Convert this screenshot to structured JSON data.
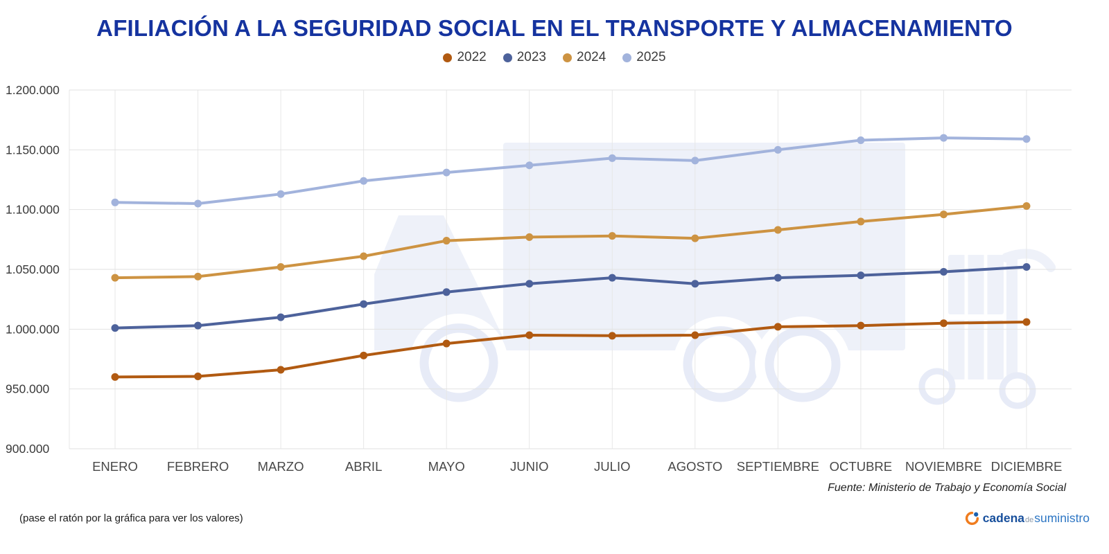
{
  "title": "AFILIACIÓN A LA SEGURIDAD SOCIAL EN EL TRANSPORTE Y ALMACENAMIENTO",
  "chart_data": {
    "type": "line",
    "title": "AFILIACIÓN A LA SEGURIDAD SOCIAL EN EL TRANSPORTE Y ALMACENAMIENTO",
    "categories": [
      "ENERO",
      "FEBRERO",
      "MARZO",
      "ABRIL",
      "MAYO",
      "JUNIO",
      "JULIO",
      "AGOSTO",
      "SEPTIEMBRE",
      "OCTUBRE",
      "NOVIEMBRE",
      "DICIEMBRE"
    ],
    "series": [
      {
        "name": "2022",
        "color": "#b15a11",
        "values": [
          960000,
          960500,
          966000,
          978000,
          988000,
          995000,
          994500,
          995000,
          1002000,
          1003000,
          1005000,
          1006000
        ]
      },
      {
        "name": "2023",
        "color": "#4d629b",
        "values": [
          1001000,
          1003000,
          1010000,
          1021000,
          1031000,
          1038000,
          1043000,
          1038000,
          1043000,
          1045000,
          1048000,
          1052000
        ]
      },
      {
        "name": "2024",
        "color": "#cd9342",
        "values": [
          1043000,
          1044000,
          1052000,
          1061000,
          1074000,
          1077000,
          1078000,
          1076000,
          1083000,
          1090000,
          1096000,
          1103000
        ]
      },
      {
        "name": "2025",
        "color": "#a2b3dc",
        "values": [
          1106000,
          1105000,
          1113000,
          1124000,
          1131000,
          1137000,
          1143000,
          1141000,
          1150000,
          1158000,
          1160000,
          1159000
        ]
      }
    ],
    "ylim": [
      900000,
      1200000
    ],
    "ytick_step": 50000,
    "ytick_labels": [
      "900.000",
      "950.000",
      "1.000.000",
      "1.050.000",
      "1.100.000",
      "1.150.000",
      "1.200.000"
    ],
    "grid": true,
    "legend_position": "top"
  },
  "source": "Fuente: Ministerio de Trabajo y Economía Social",
  "hint": "(pase el ratón por la gráfica para ver los valores)",
  "logo": {
    "part1": "cadena",
    "part2": "de",
    "part3": "suministro"
  }
}
